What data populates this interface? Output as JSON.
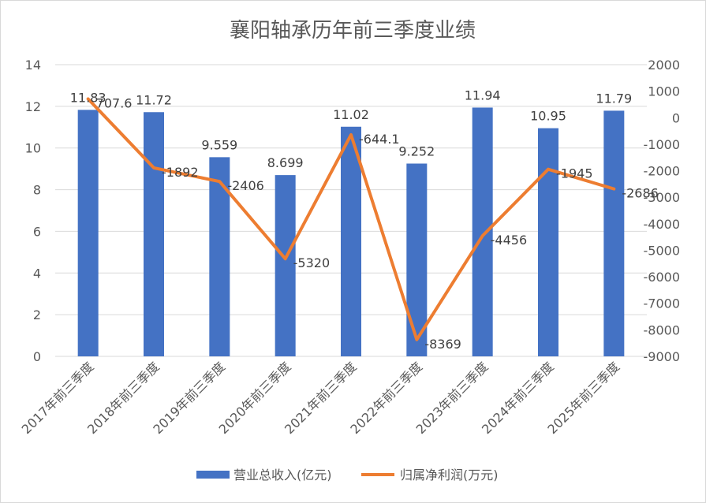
{
  "chart_data": {
    "type": "bar+line",
    "title": "襄阳轴承历年前三季度业绩",
    "categories": [
      "2017年前三季度",
      "2018年前三季度",
      "2019年前三季度",
      "2020年前三季度",
      "2021年前三季度",
      "2022年前三季度",
      "2023年前三季度",
      "2024年前三季度",
      "2025年前三季度"
    ],
    "series": [
      {
        "name": "营业总收入(亿元)",
        "type": "bar",
        "axis": "left",
        "color": "#4472C4",
        "values": [
          11.83,
          11.72,
          9.559,
          8.699,
          11.02,
          9.252,
          11.94,
          10.95,
          11.79
        ],
        "labels": [
          "11.83",
          "11.72",
          "9.559",
          "8.699",
          "11.02",
          "9.252",
          "11.94",
          "10.95",
          "11.79"
        ]
      },
      {
        "name": "归属净利润(万元)",
        "type": "line",
        "axis": "right",
        "color": "#ED7D31",
        "values": [
          707.6,
          -1892,
          -2406,
          -5320,
          -644.1,
          -8369,
          -4456,
          -1945,
          -2686
        ],
        "labels": [
          "707.6",
          "-1892",
          "-2406",
          "-5320",
          "-644.1",
          "-8369",
          "-4456",
          "-1945",
          "-2686"
        ]
      }
    ],
    "y_left": {
      "min": 0,
      "max": 14,
      "step": 2,
      "ticks": [
        "0",
        "2",
        "4",
        "6",
        "8",
        "10",
        "12",
        "14"
      ]
    },
    "y_right": {
      "min": -9000,
      "max": 2000,
      "step": 1000,
      "ticks": [
        "-9000",
        "-8000",
        "-7000",
        "-6000",
        "-5000",
        "-4000",
        "-3000",
        "-2000",
        "-1000",
        "0",
        "1000",
        "2000"
      ]
    },
    "grid": true,
    "legend_position": "bottom",
    "gridline_color": "#D9D9D9"
  }
}
